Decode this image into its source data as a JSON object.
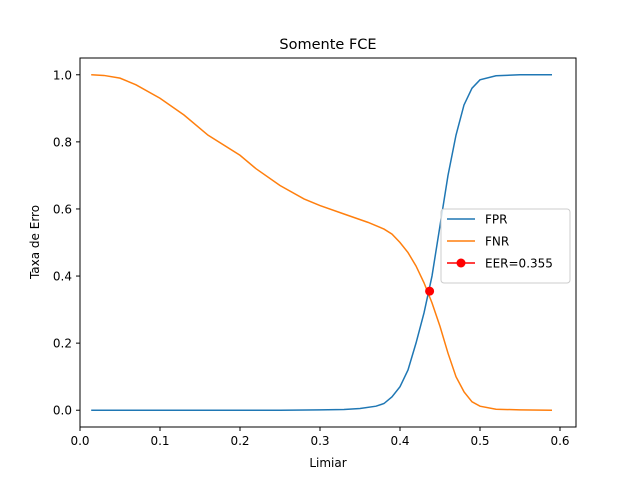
{
  "chart_data": {
    "type": "line",
    "title": "Somente FCE",
    "xlabel": "Limiar",
    "ylabel": "Taxa de Erro",
    "xlim": [
      -0.0,
      0.62
    ],
    "ylim": [
      -0.05,
      1.05
    ],
    "xticks": [
      0.0,
      0.1,
      0.2,
      0.3,
      0.4,
      0.5,
      0.6
    ],
    "xtick_labels": [
      "0.0",
      "0.1",
      "0.2",
      "0.3",
      "0.4",
      "0.5",
      "0.6"
    ],
    "yticks": [
      0.0,
      0.2,
      0.4,
      0.6,
      0.8,
      1.0
    ],
    "ytick_labels": [
      "0.0",
      "0.2",
      "0.4",
      "0.6",
      "0.8",
      "1.0"
    ],
    "grid": false,
    "legend_position": "center-right",
    "series": [
      {
        "name": "FPR",
        "color": "#1f77b4",
        "x": [
          0.014,
          0.05,
          0.1,
          0.15,
          0.2,
          0.25,
          0.3,
          0.33,
          0.35,
          0.37,
          0.38,
          0.39,
          0.4,
          0.41,
          0.42,
          0.43,
          0.44,
          0.45,
          0.46,
          0.47,
          0.48,
          0.49,
          0.5,
          0.52,
          0.55,
          0.59
        ],
        "y": [
          0.0,
          0.0,
          0.0,
          0.0,
          0.0,
          0.0,
          0.001,
          0.002,
          0.005,
          0.012,
          0.02,
          0.04,
          0.07,
          0.12,
          0.2,
          0.29,
          0.4,
          0.55,
          0.7,
          0.82,
          0.91,
          0.96,
          0.985,
          0.997,
          1.0,
          1.0
        ]
      },
      {
        "name": "FNR",
        "color": "#ff7f0e",
        "x": [
          0.014,
          0.03,
          0.05,
          0.07,
          0.1,
          0.13,
          0.16,
          0.2,
          0.22,
          0.25,
          0.28,
          0.3,
          0.33,
          0.36,
          0.38,
          0.39,
          0.4,
          0.41,
          0.42,
          0.43,
          0.44,
          0.45,
          0.46,
          0.47,
          0.48,
          0.49,
          0.5,
          0.52,
          0.55,
          0.59
        ],
        "y": [
          1.0,
          0.998,
          0.99,
          0.97,
          0.93,
          0.88,
          0.82,
          0.76,
          0.72,
          0.67,
          0.63,
          0.61,
          0.585,
          0.56,
          0.54,
          0.525,
          0.5,
          0.47,
          0.43,
          0.38,
          0.32,
          0.25,
          0.17,
          0.1,
          0.055,
          0.025,
          0.012,
          0.003,
          0.001,
          0.0
        ]
      }
    ],
    "markers": [
      {
        "name": "EER=0.355",
        "color": "#ff0000",
        "x": 0.437,
        "y": 0.355
      }
    ]
  }
}
